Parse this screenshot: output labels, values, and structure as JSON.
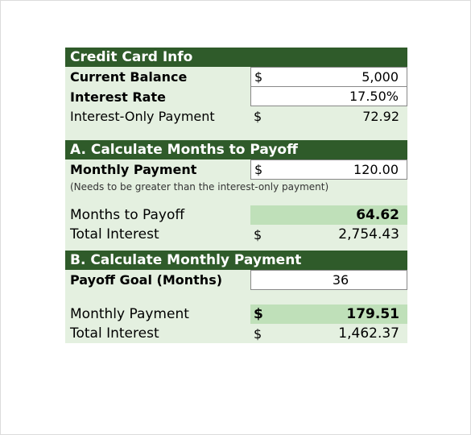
{
  "colors": {
    "sheet_bg": "#e4f0e0",
    "header_bg": "#2f5b2a",
    "header_text": "#ffffff",
    "input_bg": "#ffffff",
    "input_border": "#888888",
    "highlight_bg": "#bfe0b9",
    "outer_border": "#dcdcdc"
  },
  "section1": {
    "header": "Credit Card Info",
    "rows": {
      "balance": {
        "label": "Current Balance",
        "symbol": "$",
        "value": "5,000",
        "bold_label": true,
        "input": true
      },
      "rate": {
        "label": "Interest Rate",
        "symbol": "",
        "value": "17.50%",
        "bold_label": true,
        "input": true
      },
      "interestOnly": {
        "label": "Interest-Only Payment",
        "symbol": "$",
        "value": "72.92",
        "bold_label": false,
        "input": false
      }
    }
  },
  "section2": {
    "header": "A. Calculate Months to Payoff",
    "rows": {
      "monthlyPayment": {
        "label": "Monthly Payment",
        "symbol": "$",
        "value": "120.00",
        "bold_label": true,
        "input": true
      },
      "months": {
        "label": "Months to Payoff",
        "symbol": "",
        "value": "64.62",
        "highlight": true
      },
      "totalInterest": {
        "label": "Total Interest",
        "symbol": "$",
        "value": "2,754.43"
      }
    },
    "hint": "(Needs to be greater than the interest-only payment)"
  },
  "section3": {
    "header": "B. Calculate Monthly Payment",
    "rows": {
      "payoffGoal": {
        "label": "Payoff Goal (Months)",
        "symbol": "",
        "value": "36",
        "bold_label": true,
        "input": true,
        "center": true
      },
      "monthlyPayment": {
        "label": "Monthly Payment",
        "symbol": "$",
        "value": "179.51",
        "highlight": true
      },
      "totalInterest": {
        "label": "Total Interest",
        "symbol": "$",
        "value": "1,462.37"
      }
    }
  }
}
